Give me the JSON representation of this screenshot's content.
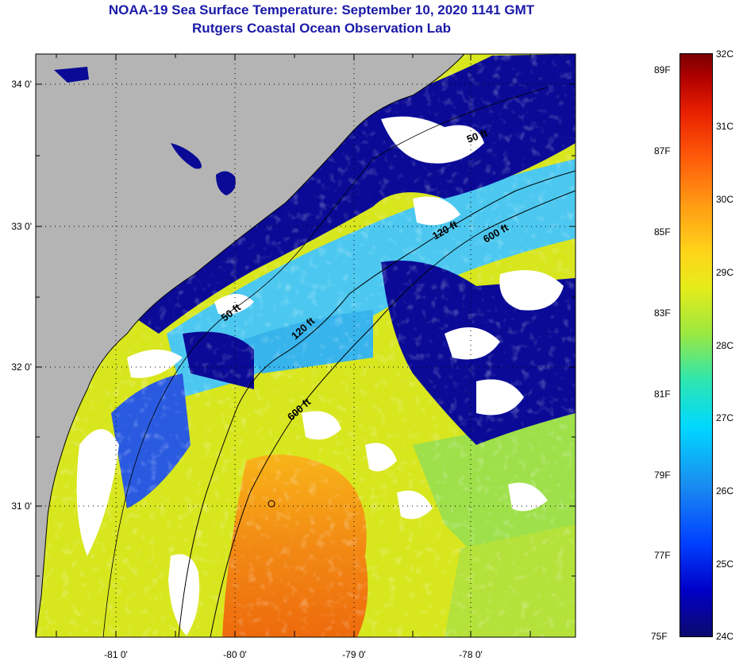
{
  "title": {
    "line1": "NOAA-19 Sea Surface Temperature:  September 10, 2020 1141 GMT",
    "line2": "Rutgers Coastal Ocean Observation Lab"
  },
  "map": {
    "lat_ticks": [
      "34 0'",
      "33 0'",
      "32 0'",
      "31 0'"
    ],
    "lon_ticks": [
      "-81 0'",
      "-80 0'",
      "-79 0'",
      "-78 0'"
    ],
    "contour_labels": {
      "c1": "50 ft",
      "c2": "120 ft",
      "c3": "600 ft",
      "c4": "50 ft",
      "c5": "120 ft",
      "c6": "600 ft"
    },
    "colors": {
      "land": "#b4b4b4",
      "cloud": "#ffffff",
      "cold_water": "#0a0a96",
      "warm_water": "#f07a10"
    }
  },
  "colorbar": {
    "celsius": [
      "32C",
      "31C",
      "30C",
      "29C",
      "28C",
      "27C",
      "26C",
      "25C",
      "24C"
    ],
    "fahrenheit": [
      "89F",
      "87F",
      "85F",
      "83F",
      "81F",
      "79F",
      "77F",
      "75F"
    ]
  }
}
